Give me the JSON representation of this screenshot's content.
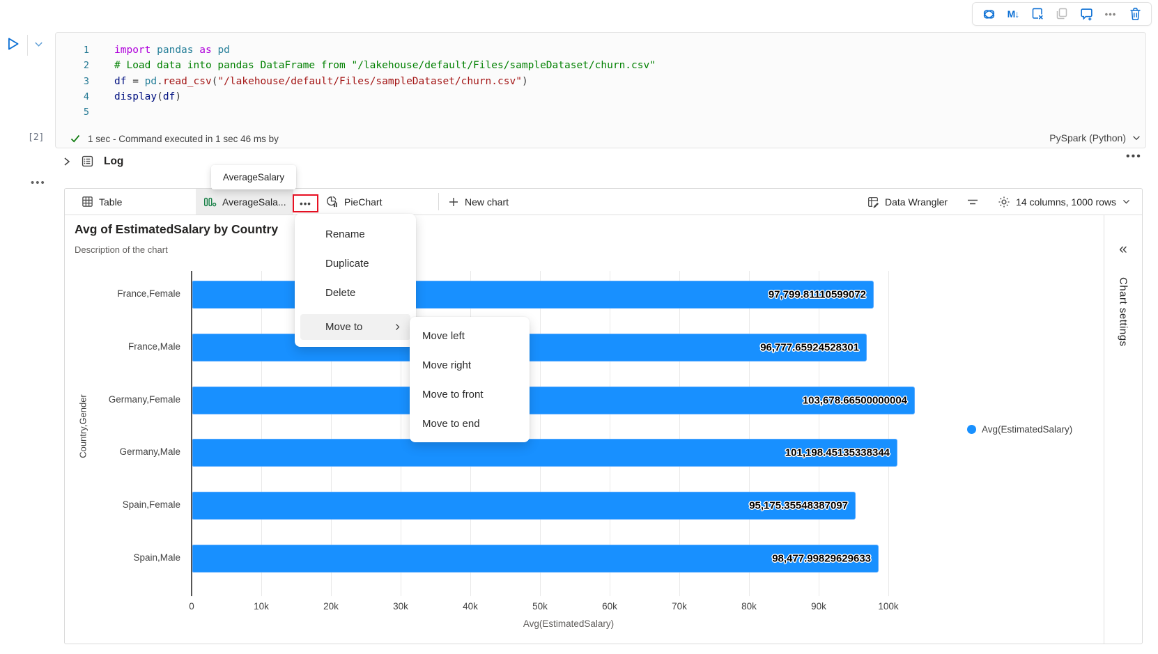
{
  "toolbar_top": {
    "icons": [
      "copilot",
      "convert-to-markdown",
      "delete-cell-output",
      "copy-cell",
      "add-comment",
      "more-options",
      "delete-cell"
    ]
  },
  "cell": {
    "execution_count": "[2]",
    "lines": [
      {
        "num": "1",
        "tokens": [
          [
            "import",
            "kw"
          ],
          [
            " ",
            "pl"
          ],
          [
            "pandas",
            "mod"
          ],
          [
            " ",
            "pl"
          ],
          [
            "as",
            "kw"
          ],
          [
            " ",
            "pl"
          ],
          [
            "pd",
            "mod"
          ]
        ]
      },
      {
        "num": "2",
        "tokens": [
          [
            "# Load data into pandas DataFrame from \"/lakehouse/default/Files/sampleDataset/churn.csv\"",
            "com"
          ]
        ]
      },
      {
        "num": "3",
        "tokens": [
          [
            "df",
            "var"
          ],
          [
            " ",
            "pl"
          ],
          [
            "=",
            "pl"
          ],
          [
            " ",
            "pl"
          ],
          [
            "pd",
            "mod"
          ],
          [
            ".",
            "pl"
          ],
          [
            "read_csv",
            "fn"
          ],
          [
            "(",
            "pl"
          ],
          [
            "\"/lakehouse/default/Files/sampleDataset/churn.csv\"",
            "str"
          ],
          [
            ")",
            "pl"
          ]
        ]
      },
      {
        "num": "4",
        "tokens": [
          [
            "display",
            "var"
          ],
          [
            "(",
            "pl"
          ],
          [
            "df",
            "var"
          ],
          [
            ")",
            "pl"
          ]
        ]
      },
      {
        "num": "5",
        "tokens": []
      }
    ],
    "status_text": "1 sec - Command executed in 1 sec 46 ms by",
    "kernel": "PySpark (Python)"
  },
  "log": {
    "label": "Log"
  },
  "tooltip": {
    "text": "AverageSalary"
  },
  "results": {
    "tabs": {
      "table": "Table",
      "chart": "AverageSala...",
      "pie": "PieChart",
      "new_chart": "New chart"
    },
    "data_wrangler": "Data Wrangler",
    "columns_rows": "14 columns, 1000 rows",
    "chart_settings": "Chart settings",
    "collapse_glyph": "«"
  },
  "menu": {
    "items": [
      {
        "id": "rename",
        "label": "Rename",
        "hover": false,
        "submenu": false
      },
      {
        "id": "duplicate",
        "label": "Duplicate",
        "hover": false,
        "submenu": false
      },
      {
        "id": "delete",
        "label": "Delete",
        "hover": false,
        "submenu": false
      },
      {
        "id": "move-to",
        "label": "Move to",
        "hover": true,
        "submenu": true
      }
    ]
  },
  "submenu": {
    "items": [
      {
        "id": "move-left",
        "label": "Move left"
      },
      {
        "id": "move-right",
        "label": "Move right"
      },
      {
        "id": "move-to-front",
        "label": "Move to front"
      },
      {
        "id": "move-to-end",
        "label": "Move to end"
      }
    ]
  },
  "chart_data": {
    "type": "bar",
    "orientation": "horizontal",
    "title": "Avg of EstimatedSalary by Country",
    "subtitle": "Description of the chart",
    "categories": [
      "France,Female",
      "France,Male",
      "Germany,Female",
      "Germany,Male",
      "Spain,Female",
      "Spain,Male"
    ],
    "values": [
      97799.81110599072,
      96777.65924528301,
      103678.66500000004,
      101198.45135338344,
      95175.35548387097,
      98477.99829629633
    ],
    "value_labels": [
      "97,799.81110599072",
      "96,777.65924528301",
      "103,678.66500000004",
      "101,198.45135338344",
      "95,175.35548387097",
      "98,477.99829629633"
    ],
    "xlabel": "Avg(EstimatedSalary)",
    "ylabel": "Country,Gender",
    "xticks": [
      "0",
      "10k",
      "20k",
      "30k",
      "40k",
      "50k",
      "60k",
      "70k",
      "80k",
      "90k",
      "100k"
    ],
    "xlim": [
      0,
      100000
    ],
    "grid": true,
    "legend_position": "right",
    "legend": [
      {
        "label": "Avg(EstimatedSalary)",
        "color": "#1890ff"
      }
    ],
    "bar_color": "#1890ff"
  },
  "colors": {
    "accent": "#0b6fd4",
    "bar": "#1890ff",
    "red_highlight": "#e81123",
    "selected_tab_bg": "#ededed"
  }
}
